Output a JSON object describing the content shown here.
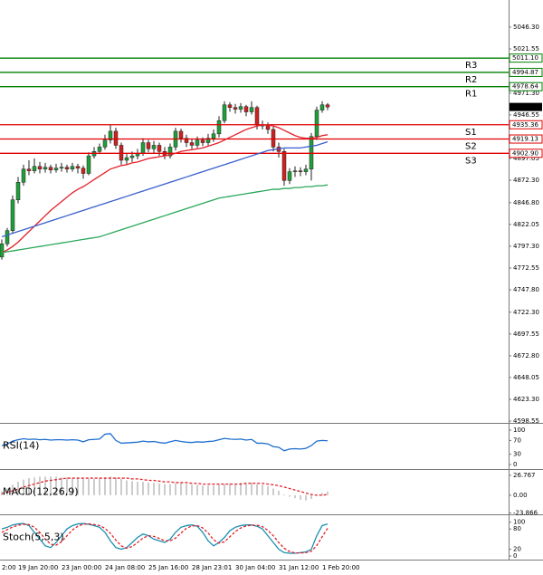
{
  "chart_data": [
    {
      "type": "candlestick",
      "categories": [
        "2:00",
        null,
        null,
        "19 Jan 20:00",
        null,
        null,
        null,
        null,
        null,
        null,
        null,
        "23 Jan 00:00",
        null,
        null,
        null,
        null,
        null,
        null,
        null,
        "24 Jan 08:00",
        null,
        null,
        null,
        null,
        null,
        null,
        null,
        "25 Jan 16:00",
        null,
        null,
        null,
        null,
        null,
        null,
        null,
        "28 Jan 23:01",
        null,
        null,
        null,
        null,
        null,
        null,
        null,
        "30 Jan 04:00",
        null,
        null,
        null,
        null,
        null,
        null,
        null,
        "31 Jan 12:00",
        null,
        null,
        null,
        null,
        null,
        null,
        null,
        "1 Feb 20:00",
        null
      ],
      "open": [
        4785,
        4800,
        4815,
        4850,
        4870,
        4885,
        4883,
        4888,
        4885,
        4887,
        4884,
        4886,
        4887,
        4885,
        4888,
        4886,
        4880,
        4900,
        4905,
        4910,
        4918,
        4928,
        4912,
        4895,
        4898,
        4900,
        4903,
        4915,
        4908,
        4912,
        4905,
        4900,
        4910,
        4928,
        4920,
        4915,
        4912,
        4918,
        4915,
        4920,
        4925,
        4940,
        4958,
        4955,
        4953,
        4956,
        4950,
        4955,
        4935,
        4935,
        4930,
        4910,
        4905,
        4872,
        4882,
        4883,
        4882,
        4885,
        4922,
        4952,
        4958
      ],
      "high": [
        4805,
        4818,
        4855,
        4876,
        4890,
        4895,
        4897,
        4893,
        4892,
        4890,
        4891,
        4892,
        4890,
        4892,
        4891,
        4889,
        4904,
        4910,
        4914,
        4924,
        4935,
        4932,
        4915,
        4903,
        4905,
        4908,
        4920,
        4918,
        4917,
        4915,
        4910,
        4914,
        4932,
        4931,
        4924,
        4919,
        4922,
        4921,
        4925,
        4930,
        4945,
        4962,
        4961,
        4959,
        4960,
        4958,
        4962,
        4957,
        4940,
        4938,
        4933,
        4915,
        4908,
        4886,
        4888,
        4887,
        4890,
        4926,
        4956,
        4962,
        4960
      ],
      "low": [
        4782,
        4797,
        4812,
        4846,
        4866,
        4878,
        4880,
        4880,
        4881,
        4880,
        4881,
        4882,
        4881,
        4882,
        4880,
        4874,
        4878,
        4897,
        4902,
        4907,
        4914,
        4908,
        4890,
        4890,
        4893,
        4896,
        4900,
        4904,
        4903,
        4900,
        4896,
        4897,
        4906,
        4915,
        4910,
        4908,
        4909,
        4911,
        4912,
        4916,
        4921,
        4937,
        4950,
        4948,
        4949,
        4945,
        4947,
        4930,
        4930,
        4925,
        4905,
        4898,
        4866,
        4868,
        4876,
        4877,
        4878,
        4872,
        4918,
        4949,
        4952
      ],
      "close": [
        4800,
        4815,
        4850,
        4870,
        4885,
        4883,
        4888,
        4885,
        4887,
        4884,
        4886,
        4887,
        4885,
        4888,
        4886,
        4880,
        4900,
        4905,
        4910,
        4918,
        4928,
        4912,
        4895,
        4898,
        4900,
        4903,
        4915,
        4908,
        4912,
        4905,
        4900,
        4910,
        4928,
        4920,
        4915,
        4912,
        4918,
        4915,
        4920,
        4925,
        4940,
        4958,
        4955,
        4953,
        4956,
        4950,
        4955,
        4935,
        4935,
        4930,
        4910,
        4905,
        4872,
        4882,
        4883,
        4882,
        4885,
        4922,
        4952,
        4958,
        4955.58
      ],
      "up_color": "#1f9e3a",
      "down_color": "#cc2222",
      "series": [
        {
          "color": "#e3202a",
          "values": [
            4790,
            4793,
            4797,
            4802,
            4808,
            4814,
            4820,
            4826,
            4832,
            4838,
            4843,
            4848,
            4853,
            4858,
            4862,
            4865,
            4869,
            4873,
            4877,
            4881,
            4885,
            4887,
            4889,
            4890,
            4892,
            4893,
            4895,
            4897,
            4898,
            4899,
            4900,
            4901,
            4903,
            4905,
            4906,
            4907,
            4908,
            4909,
            4911,
            4913,
            4915,
            4918,
            4921,
            4924,
            4927,
            4930,
            4932,
            4934,
            4935,
            4935,
            4934,
            4932,
            4929,
            4926,
            4923,
            4921,
            4920,
            4920,
            4921,
            4923,
            4924
          ]
        },
        {
          "color": "#3a5fcd",
          "values": [
            4808,
            4810,
            4812,
            4814,
            4816,
            4818,
            4820,
            4822,
            4824,
            4826,
            4828,
            4830,
            4832,
            4834,
            4836,
            4838,
            4840,
            4842,
            4844,
            4846,
            4848,
            4850,
            4852,
            4854,
            4856,
            4858,
            4860,
            4862,
            4864,
            4866,
            4868,
            4870,
            4872,
            4874,
            4876,
            4878,
            4880,
            4882,
            4884,
            4886,
            4888,
            4890,
            4892,
            4894,
            4896,
            4898,
            4900,
            4902,
            4904,
            4906,
            4907,
            4908,
            4909,
            4909,
            4909,
            4909,
            4910,
            4911,
            4912,
            4914,
            4916
          ]
        },
        {
          "color": "#2aa85a",
          "values": [
            4790,
            4791,
            4792,
            4793,
            4794,
            4795,
            4796,
            4797,
            4798,
            4799,
            4800,
            4801,
            4802,
            4803,
            4804,
            4805,
            4806,
            4807,
            4808,
            4810,
            4812,
            4814,
            4816,
            4818,
            4820,
            4822,
            4824,
            4826,
            4828,
            4830,
            4832,
            4834,
            4836,
            4838,
            4840,
            4842,
            4844,
            4846,
            4848,
            4850,
            4852,
            4853,
            4854,
            4855,
            4856,
            4857,
            4858,
            4859,
            4860,
            4861,
            4862,
            4862,
            4863,
            4863,
            4864,
            4864,
            4865,
            4865,
            4866,
            4866,
            4867
          ]
        }
      ],
      "levels": [
        {
          "name": "R3",
          "value": 5011.1,
          "label": "5011.10",
          "color": "#007f00"
        },
        {
          "name": "R2",
          "value": 4994.87,
          "color": "#007f00"
        },
        {
          "name": "R1",
          "value": 4978.64,
          "color": "#007f00"
        },
        {
          "name": "S1",
          "value": 4935.36,
          "color": "#e00000"
        },
        {
          "name": "S2",
          "value": 4919.13,
          "color": "#e00000"
        },
        {
          "name": "S3",
          "value": 4902.9,
          "label": "4902.90",
          "color": "#e00000"
        }
      ],
      "last_color": "#000000",
      "ylim": [
        4596.5,
        5072
      ],
      "yticks": [
        {
          "value": 5046.3,
          "label": "5046.30"
        },
        5021.55,
        {
          "value": 4971.3,
          "label": "4971.30"
        },
        4946.55,
        4897.05,
        {
          "value": 4872.3,
          "label": "4872.30"
        },
        {
          "value": 4846.8,
          "label": "4846.80"
        },
        4822.05,
        {
          "value": 4797.3,
          "label": "4797.30"
        },
        4772.55,
        {
          "value": 4747.8,
          "label": "4747.80"
        },
        {
          "value": 4722.3,
          "label": "4722.30"
        },
        4697.55,
        {
          "value": 4672.8,
          "label": "4672.80"
        },
        4648.05,
        {
          "value": 4623.3,
          "label": "4623.30"
        },
        4598.55
      ]
    },
    {
      "type": "line",
      "title": "RSI(14)",
      "series": [
        {
          "color": "#1e6fd0",
          "values": [
            55,
            60,
            68,
            72,
            75,
            73,
            74,
            72,
            73,
            71,
            72,
            72,
            71,
            72,
            71,
            66,
            72,
            73,
            74,
            88,
            90,
            70,
            62,
            63,
            64,
            65,
            68,
            66,
            67,
            64,
            62,
            66,
            70,
            67,
            65,
            64,
            66,
            65,
            67,
            68,
            72,
            76,
            74,
            73,
            74,
            71,
            73,
            62,
            62,
            60,
            52,
            50,
            40,
            45,
            46,
            45,
            47,
            55,
            68,
            70,
            69
          ]
        }
      ],
      "ylim": [
        -10.5,
        118.4
      ],
      "yticks": [
        100,
        70,
        30,
        0
      ]
    },
    {
      "type": "bar",
      "title": "MACD(12,26,9)",
      "color": "#999999",
      "values": [
        5,
        9,
        14,
        18,
        21,
        23,
        24,
        25,
        25,
        25,
        25,
        24,
        24,
        23,
        23,
        22,
        22,
        22,
        23,
        24,
        25,
        24,
        22,
        20,
        19,
        18,
        18,
        17,
        17,
        16,
        15,
        15,
        16,
        16,
        15,
        14,
        14,
        13,
        13,
        13,
        14,
        15,
        16,
        16,
        17,
        17,
        17,
        15,
        14,
        12,
        9,
        6,
        1,
        -2,
        -4,
        -6,
        -7,
        -5,
        0,
        3,
        5
      ],
      "series": [
        {
          "color": "#e3202a",
          "dashed": true,
          "values": [
            2,
            4,
            6,
            8,
            11,
            13,
            15,
            17,
            19,
            20,
            21,
            22,
            23,
            23,
            23,
            23,
            23,
            23,
            23,
            23,
            23,
            23,
            23,
            23,
            22,
            22,
            21,
            20,
            20,
            19,
            18,
            18,
            17,
            17,
            17,
            16,
            16,
            15,
            15,
            15,
            15,
            15,
            15,
            15,
            15,
            16,
            16,
            16,
            16,
            15,
            14,
            13,
            11,
            9,
            7,
            5,
            3,
            1,
            0,
            0,
            1
          ]
        }
      ],
      "ylim": [
        -24.5,
        32.8
      ],
      "yticks": [
        26.767,
        {
          "value": 0,
          "label": "0.00"
        },
        -23.866
      ]
    },
    {
      "type": "line",
      "title": "Stoch(5,5,3)",
      "series": [
        {
          "color": "#1a8fb0",
          "values": [
            80,
            85,
            92,
            95,
            96,
            90,
            70,
            50,
            30,
            25,
            40,
            60,
            80,
            90,
            95,
            96,
            94,
            90,
            85,
            70,
            45,
            25,
            20,
            25,
            40,
            55,
            65,
            60,
            50,
            45,
            40,
            50,
            70,
            85,
            90,
            92,
            88,
            70,
            45,
            30,
            40,
            55,
            75,
            85,
            90,
            92,
            92,
            88,
            80,
            60,
            40,
            20,
            10,
            8,
            8,
            10,
            12,
            20,
            60,
            90,
            95
          ]
        },
        {
          "color": "#e3202a",
          "dashed": true,
          "values": [
            70,
            78,
            86,
            91,
            94,
            93,
            85,
            70,
            50,
            35,
            32,
            42,
            60,
            77,
            88,
            94,
            95,
            93,
            90,
            82,
            67,
            47,
            30,
            23,
            28,
            40,
            53,
            60,
            58,
            52,
            45,
            45,
            53,
            68,
            82,
            89,
            90,
            83,
            68,
            48,
            38,
            42,
            57,
            72,
            83,
            89,
            91,
            91,
            87,
            76,
            60,
            40,
            23,
            13,
            9,
            9,
            10,
            14,
            31,
            57,
            82
          ]
        }
      ],
      "ylim": [
        -8,
        118
      ],
      "yticks": [
        100,
        80,
        20,
        0
      ]
    }
  ]
}
